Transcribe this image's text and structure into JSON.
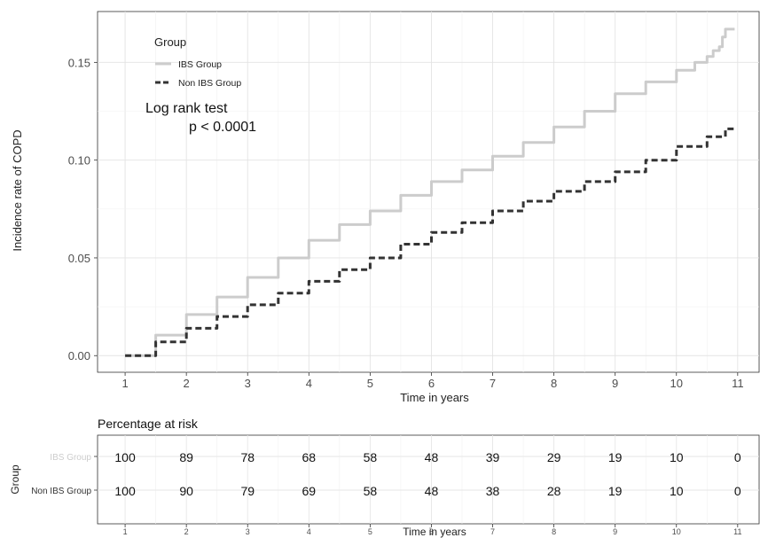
{
  "chart_data": [
    {
      "type": "line",
      "title": "",
      "xlabel": "Time in years",
      "ylabel": "Incidence rate of COPD",
      "xlim": [
        0.55,
        11.35
      ],
      "ylim": [
        -0.0085,
        0.176
      ],
      "x_ticks": [
        1,
        2,
        3,
        4,
        5,
        6,
        7,
        8,
        9,
        10,
        11
      ],
      "y_ticks": [
        0.0,
        0.05,
        0.1,
        0.15
      ],
      "y_tick_labels": [
        "0.00",
        "0.05",
        "0.10",
        "0.15"
      ],
      "grid": true,
      "legend": {
        "title": "Group",
        "position": "top-left"
      },
      "annotation": {
        "line1": "Log rank test",
        "line2": "p < 0.0001"
      },
      "series": [
        {
          "name": "IBS Group",
          "color": "#cccccc",
          "style": "solid",
          "x": [
            1,
            1.5,
            2,
            2.5,
            3,
            3.5,
            4,
            4.5,
            5,
            5.5,
            6,
            6.5,
            7,
            7.5,
            8,
            8.5,
            9,
            9.5,
            10,
            10.3,
            10.5,
            10.6,
            10.7,
            10.75,
            10.8,
            10.95
          ],
          "y": [
            0.0,
            0.0105,
            0.021,
            0.03,
            0.04,
            0.05,
            0.059,
            0.067,
            0.074,
            0.082,
            0.089,
            0.095,
            0.102,
            0.109,
            0.117,
            0.125,
            0.134,
            0.14,
            0.146,
            0.15,
            0.153,
            0.156,
            0.158,
            0.163,
            0.167,
            0.167
          ]
        },
        {
          "name": "Non IBS Group",
          "color": "#333333",
          "style": "dashed",
          "x": [
            1,
            1.5,
            2,
            2.5,
            3,
            3.5,
            4,
            4.5,
            5,
            5.5,
            6,
            6.5,
            7,
            7.5,
            8,
            8.5,
            9,
            9.5,
            10,
            10.5,
            10.8,
            10.95
          ],
          "y": [
            0.0,
            0.007,
            0.014,
            0.02,
            0.026,
            0.032,
            0.038,
            0.044,
            0.05,
            0.057,
            0.063,
            0.068,
            0.074,
            0.079,
            0.084,
            0.089,
            0.094,
            0.1,
            0.107,
            0.112,
            0.116,
            0.116
          ]
        }
      ]
    },
    {
      "type": "table",
      "title": "Percentage at risk",
      "xlabel": "Time in years",
      "ylabel": "Group",
      "x_ticks": [
        1,
        2,
        3,
        4,
        5,
        6,
        7,
        8,
        9,
        10,
        11
      ],
      "rows": [
        {
          "name": "IBS Group",
          "color": "#cccccc",
          "values": [
            100,
            89,
            78,
            68,
            58,
            48,
            39,
            29,
            19,
            10,
            0
          ]
        },
        {
          "name": "Non IBS Group",
          "color": "#333333",
          "values": [
            100,
            90,
            79,
            69,
            58,
            48,
            38,
            28,
            19,
            10,
            0
          ]
        }
      ]
    }
  ]
}
